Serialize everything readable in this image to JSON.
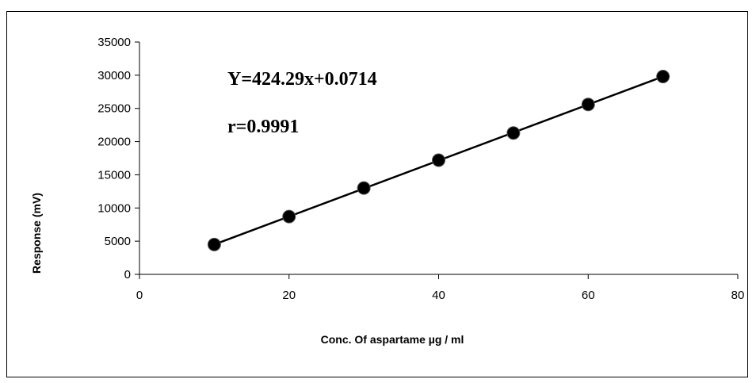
{
  "chart_data": {
    "type": "scatter",
    "title": "",
    "xlabel": "Conc. Of aspartame  µg / ml",
    "ylabel": "Response (mV)",
    "xlim": [
      0,
      80
    ],
    "ylim": [
      0,
      35000
    ],
    "x_ticks": [
      0,
      20,
      40,
      60,
      80
    ],
    "y_ticks": [
      0,
      5000,
      10000,
      15000,
      20000,
      25000,
      30000,
      35000
    ],
    "x_tick_labels": [
      "0",
      "20",
      "40",
      "60",
      "80"
    ],
    "y_tick_labels": [
      "0",
      "5000",
      "10000",
      "15000",
      "20000",
      "25000",
      "30000",
      "35000"
    ],
    "grid": false,
    "legend": "none",
    "series": [
      {
        "x": [
          10,
          20,
          30,
          40,
          50,
          60,
          70
        ],
        "y": [
          4500,
          8700,
          13000,
          17200,
          21300,
          25600,
          29800
        ],
        "marker_color": "#000000",
        "line_color": "#000000"
      }
    ],
    "trendline": {
      "slope": 424.29,
      "intercept": 0.0714
    },
    "annotations": [
      {
        "text": "Y=424.29x+0.0714"
      },
      {
        "text": "r=0.9991"
      }
    ]
  }
}
